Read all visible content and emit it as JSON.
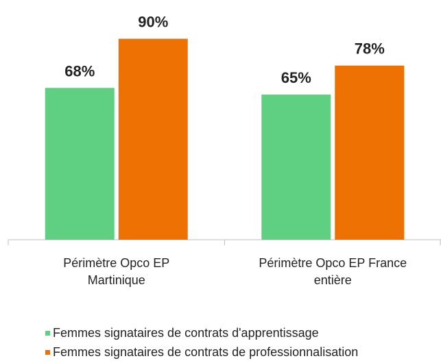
{
  "chart_data": {
    "type": "bar",
    "categories": [
      "Périmètre Opco EP Martinique",
      "Périmètre Opco EP France entière"
    ],
    "series": [
      {
        "name": "Femmes signataires de contrats d'apprentissage",
        "color": "#5fd082",
        "values": [
          68,
          65
        ],
        "value_labels": [
          "68%",
          "65%"
        ]
      },
      {
        "name": "Femmes signataires de contrats de professionnalisation",
        "color": "#ee7203",
        "values": [
          90,
          78
        ],
        "value_labels": [
          "90%",
          "78%"
        ]
      }
    ],
    "ylim": [
      0,
      100
    ]
  }
}
